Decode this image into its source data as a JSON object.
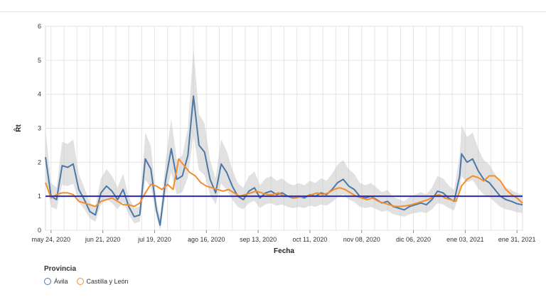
{
  "chart_data": {
    "type": "line",
    "xlabel": "Fecha",
    "ylabel": "R̂t",
    "ylim": [
      0,
      6
    ],
    "yticks": [
      "0",
      "1",
      "2",
      "3",
      "4",
      "5",
      "6"
    ],
    "xticks": [
      {
        "date": "2020-05-24",
        "label": "may 24, 2020"
      },
      {
        "date": "2020-06-21",
        "label": "jun 21, 2020"
      },
      {
        "date": "2020-07-19",
        "label": "jul 19, 2020"
      },
      {
        "date": "2020-08-16",
        "label": "ago 16, 2020"
      },
      {
        "date": "2020-09-13",
        "label": "sep 13, 2020"
      },
      {
        "date": "2020-10-11",
        "label": "oct 11, 2020"
      },
      {
        "date": "2020-11-08",
        "label": "nov 08, 2020"
      },
      {
        "date": "2020-12-06",
        "label": "dic 06, 2020"
      },
      {
        "date": "2021-01-03",
        "label": "ene 03, 2021"
      },
      {
        "date": "2021-01-31",
        "label": "ene 31, 2021"
      }
    ],
    "xlim": [
      "2020-05-21",
      "2021-02-03"
    ],
    "reference_line": {
      "y": 1,
      "color": "#2a2aa8"
    },
    "grid": true,
    "legend_title": "Provincia",
    "legend_position": "bottom-left",
    "series": [
      {
        "name": "Ávila",
        "color": "#4c78a8",
        "points": [
          [
            "2020-05-21",
            2.15
          ],
          [
            "2020-05-24",
            1.0
          ],
          [
            "2020-05-27",
            0.9
          ],
          [
            "2020-05-30",
            1.9
          ],
          [
            "2020-06-02",
            1.85
          ],
          [
            "2020-06-05",
            1.95
          ],
          [
            "2020-06-08",
            1.2
          ],
          [
            "2020-06-11",
            0.9
          ],
          [
            "2020-06-14",
            0.55
          ],
          [
            "2020-06-17",
            0.45
          ],
          [
            "2020-06-20",
            1.1
          ],
          [
            "2020-06-23",
            1.3
          ],
          [
            "2020-06-26",
            1.15
          ],
          [
            "2020-06-29",
            0.9
          ],
          [
            "2020-07-02",
            1.2
          ],
          [
            "2020-07-05",
            0.7
          ],
          [
            "2020-07-08",
            0.4
          ],
          [
            "2020-07-11",
            0.45
          ],
          [
            "2020-07-14",
            2.1
          ],
          [
            "2020-07-17",
            1.8
          ],
          [
            "2020-07-20",
            0.6
          ],
          [
            "2020-07-22",
            0.15
          ],
          [
            "2020-07-25",
            1.5
          ],
          [
            "2020-07-28",
            2.4
          ],
          [
            "2020-07-31",
            1.5
          ],
          [
            "2020-08-03",
            1.6
          ],
          [
            "2020-08-06",
            2.2
          ],
          [
            "2020-08-09",
            3.95
          ],
          [
            "2020-08-12",
            2.5
          ],
          [
            "2020-08-15",
            2.3
          ],
          [
            "2020-08-18",
            1.5
          ],
          [
            "2020-08-21",
            1.1
          ],
          [
            "2020-08-24",
            1.95
          ],
          [
            "2020-08-27",
            1.7
          ],
          [
            "2020-08-30",
            1.3
          ],
          [
            "2020-09-02",
            1.0
          ],
          [
            "2020-09-05",
            0.9
          ],
          [
            "2020-09-08",
            1.15
          ],
          [
            "2020-09-11",
            1.25
          ],
          [
            "2020-09-14",
            0.95
          ],
          [
            "2020-09-17",
            1.1
          ],
          [
            "2020-09-20",
            1.15
          ],
          [
            "2020-09-23",
            1.05
          ],
          [
            "2020-09-26",
            1.1
          ],
          [
            "2020-09-29",
            1.0
          ],
          [
            "2020-10-02",
            0.95
          ],
          [
            "2020-10-05",
            1.0
          ],
          [
            "2020-10-08",
            0.95
          ],
          [
            "2020-10-11",
            1.05
          ],
          [
            "2020-10-14",
            1.0
          ],
          [
            "2020-10-17",
            1.1
          ],
          [
            "2020-10-20",
            1.05
          ],
          [
            "2020-10-23",
            1.2
          ],
          [
            "2020-10-26",
            1.4
          ],
          [
            "2020-10-29",
            1.5
          ],
          [
            "2020-11-01",
            1.3
          ],
          [
            "2020-11-04",
            1.2
          ],
          [
            "2020-11-07",
            1.0
          ],
          [
            "2020-11-10",
            0.95
          ],
          [
            "2020-11-13",
            1.0
          ],
          [
            "2020-11-16",
            0.9
          ],
          [
            "2020-11-19",
            0.8
          ],
          [
            "2020-11-22",
            0.85
          ],
          [
            "2020-11-25",
            0.7
          ],
          [
            "2020-11-28",
            0.65
          ],
          [
            "2020-12-01",
            0.6
          ],
          [
            "2020-12-04",
            0.7
          ],
          [
            "2020-12-07",
            0.75
          ],
          [
            "2020-12-10",
            0.8
          ],
          [
            "2020-12-13",
            0.75
          ],
          [
            "2020-12-16",
            0.9
          ],
          [
            "2020-12-19",
            1.15
          ],
          [
            "2020-12-22",
            1.1
          ],
          [
            "2020-12-25",
            0.95
          ],
          [
            "2020-12-28",
            0.85
          ],
          [
            "2020-12-31",
            1.6
          ],
          [
            "2021-01-01",
            2.25
          ],
          [
            "2021-01-04",
            2.0
          ],
          [
            "2021-01-07",
            2.1
          ],
          [
            "2021-01-10",
            1.75
          ],
          [
            "2021-01-13",
            1.5
          ],
          [
            "2021-01-16",
            1.4
          ],
          [
            "2021-01-19",
            1.2
          ],
          [
            "2021-01-22",
            1.0
          ],
          [
            "2021-01-25",
            0.9
          ],
          [
            "2021-01-28",
            0.85
          ],
          [
            "2021-01-31",
            0.78
          ],
          [
            "2021-02-03",
            0.75
          ]
        ]
      },
      {
        "name": "Castilla y León",
        "color": "#f28e2b",
        "points": [
          [
            "2020-05-21",
            1.4
          ],
          [
            "2020-05-24",
            0.95
          ],
          [
            "2020-05-27",
            1.05
          ],
          [
            "2020-05-30",
            1.1
          ],
          [
            "2020-06-02",
            1.1
          ],
          [
            "2020-06-05",
            1.05
          ],
          [
            "2020-06-08",
            0.85
          ],
          [
            "2020-06-11",
            0.8
          ],
          [
            "2020-06-14",
            0.75
          ],
          [
            "2020-06-17",
            0.7
          ],
          [
            "2020-06-20",
            0.85
          ],
          [
            "2020-06-23",
            0.9
          ],
          [
            "2020-06-26",
            0.95
          ],
          [
            "2020-06-29",
            0.85
          ],
          [
            "2020-07-02",
            0.75
          ],
          [
            "2020-07-05",
            0.75
          ],
          [
            "2020-07-08",
            0.7
          ],
          [
            "2020-07-11",
            0.8
          ],
          [
            "2020-07-14",
            1.1
          ],
          [
            "2020-07-17",
            1.35
          ],
          [
            "2020-07-20",
            1.3
          ],
          [
            "2020-07-23",
            1.2
          ],
          [
            "2020-07-26",
            1.35
          ],
          [
            "2020-07-29",
            1.2
          ],
          [
            "2020-08-01",
            2.1
          ],
          [
            "2020-08-04",
            1.9
          ],
          [
            "2020-08-07",
            1.7
          ],
          [
            "2020-08-10",
            1.6
          ],
          [
            "2020-08-13",
            1.4
          ],
          [
            "2020-08-16",
            1.3
          ],
          [
            "2020-08-19",
            1.25
          ],
          [
            "2020-08-22",
            1.2
          ],
          [
            "2020-08-25",
            1.15
          ],
          [
            "2020-08-28",
            1.2
          ],
          [
            "2020-08-31",
            1.1
          ],
          [
            "2020-09-03",
            1.0
          ],
          [
            "2020-09-06",
            1.05
          ],
          [
            "2020-09-09",
            1.1
          ],
          [
            "2020-09-12",
            1.15
          ],
          [
            "2020-09-15",
            1.1
          ],
          [
            "2020-09-18",
            1.05
          ],
          [
            "2020-09-21",
            1.05
          ],
          [
            "2020-09-24",
            1.1
          ],
          [
            "2020-09-27",
            1.0
          ],
          [
            "2020-09-30",
            1.0
          ],
          [
            "2020-10-03",
            0.95
          ],
          [
            "2020-10-06",
            0.98
          ],
          [
            "2020-10-09",
            1.0
          ],
          [
            "2020-10-12",
            1.05
          ],
          [
            "2020-10-15",
            1.1
          ],
          [
            "2020-10-18",
            1.05
          ],
          [
            "2020-10-21",
            1.1
          ],
          [
            "2020-10-24",
            1.2
          ],
          [
            "2020-10-27",
            1.25
          ],
          [
            "2020-10-30",
            1.2
          ],
          [
            "2020-11-02",
            1.1
          ],
          [
            "2020-11-05",
            1.0
          ],
          [
            "2020-11-08",
            0.95
          ],
          [
            "2020-11-11",
            0.9
          ],
          [
            "2020-11-14",
            0.95
          ],
          [
            "2020-11-17",
            0.85
          ],
          [
            "2020-11-20",
            0.8
          ],
          [
            "2020-11-23",
            0.75
          ],
          [
            "2020-11-26",
            0.7
          ],
          [
            "2020-11-29",
            0.7
          ],
          [
            "2020-12-02",
            0.72
          ],
          [
            "2020-12-05",
            0.75
          ],
          [
            "2020-12-08",
            0.8
          ],
          [
            "2020-12-11",
            0.85
          ],
          [
            "2020-12-14",
            0.9
          ],
          [
            "2020-12-17",
            1.0
          ],
          [
            "2020-12-20",
            1.05
          ],
          [
            "2020-12-23",
            0.95
          ],
          [
            "2020-12-26",
            0.9
          ],
          [
            "2020-12-29",
            0.85
          ],
          [
            "2021-01-01",
            1.3
          ],
          [
            "2021-01-04",
            1.5
          ],
          [
            "2021-01-07",
            1.6
          ],
          [
            "2021-01-10",
            1.55
          ],
          [
            "2021-01-13",
            1.45
          ],
          [
            "2021-01-16",
            1.6
          ],
          [
            "2021-01-19",
            1.6
          ],
          [
            "2021-01-22",
            1.45
          ],
          [
            "2021-01-25",
            1.2
          ],
          [
            "2021-01-28",
            1.05
          ],
          [
            "2021-01-31",
            0.95
          ],
          [
            "2021-02-03",
            0.8
          ]
        ]
      }
    ]
  }
}
